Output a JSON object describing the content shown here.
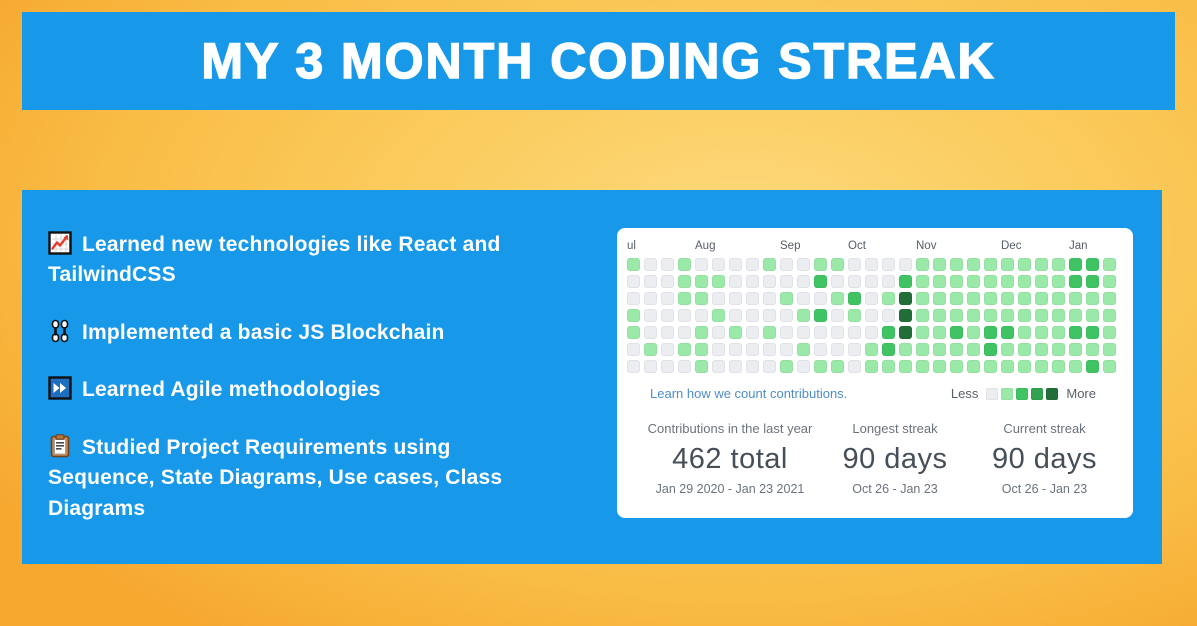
{
  "header": {
    "title": "MY 3 MONTH CODING STREAK"
  },
  "bullets": [
    {
      "icon": "chart-increasing-icon",
      "text": "Learned new technologies like React and TailwindCSS"
    },
    {
      "icon": "chains-icon",
      "text": "Implemented a basic JS Blockchain"
    },
    {
      "icon": "fast-forward-icon",
      "text": "Learned Agile methodologies"
    },
    {
      "icon": "clipboard-icon",
      "text": "Studied Project Requirements using Sequence, State Diagrams, Use cases, Class Diagrams"
    }
  ],
  "contribution_card": {
    "months": [
      {
        "label": "ul",
        "col": 1
      },
      {
        "label": "Aug",
        "col": 5
      },
      {
        "label": "Sep",
        "col": 10
      },
      {
        "label": "Oct",
        "col": 14
      },
      {
        "label": "Nov",
        "col": 18
      },
      {
        "label": "Dec",
        "col": 23
      },
      {
        "label": "Jan",
        "col": 27
      }
    ],
    "grid_rows": 7,
    "grid_cols": 29,
    "grid_levels": [
      "10010000100110000111111111221",
      "00011100000200002111111111221",
      "00011000010012014111111111111",
      "10000100001201004111111111111",
      "10001010100000024112122111221",
      "01011000001000121111121111111",
      "00001000010110111111111111121"
    ],
    "level_colors": [
      "#ebedf0",
      "#9be9a8",
      "#40c463",
      "#30a14e",
      "#216e39"
    ],
    "link_text": "Learn how we count contributions.",
    "legend": {
      "less": "Less",
      "more": "More"
    },
    "stats": [
      {
        "label": "Contributions in the last year",
        "value": "462 total",
        "range": "Jan 29 2020 - Jan 23 2021"
      },
      {
        "label": "Longest streak",
        "value": "90 days",
        "range": "Oct 26 - Jan 23"
      },
      {
        "label": "Current streak",
        "value": "90 days",
        "range": "Oct 26 - Jan 23"
      }
    ]
  },
  "colors": {
    "banner_blue": "#1798e8",
    "panel_blue": "#1798e8",
    "background_yellow": "#fbcb5c",
    "card_white": "#ffffff",
    "link_blue": "#4e8cc9"
  }
}
